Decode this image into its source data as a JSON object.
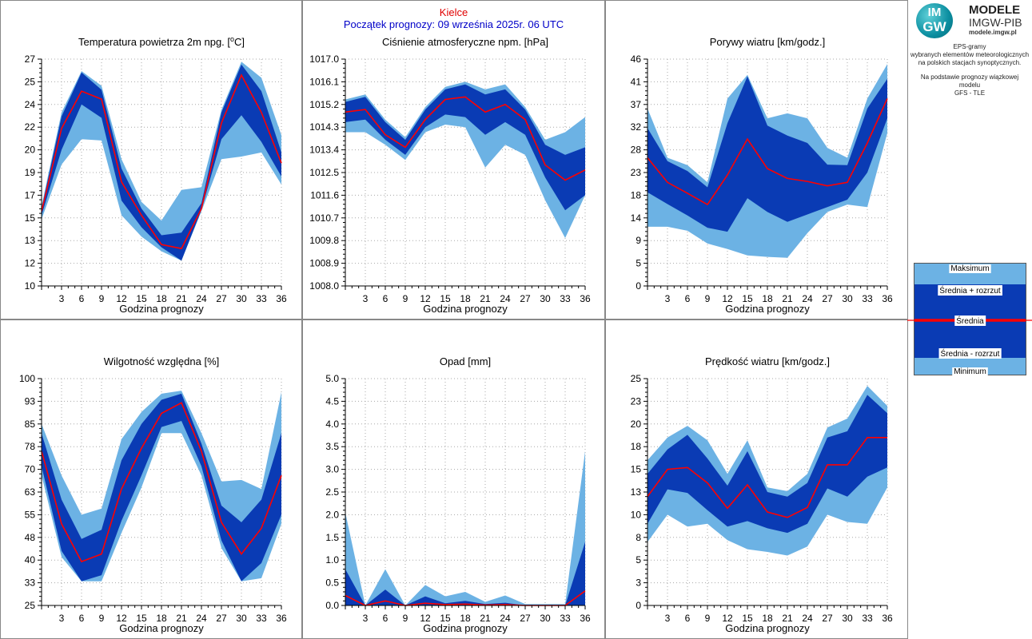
{
  "header": {
    "station": "Kielce",
    "forecast_start": "Początek prognozy: 09 września 2025r. 06 UTC"
  },
  "logo": {
    "badge_top": "IM",
    "badge_bottom": "GW",
    "line1": "MODELE",
    "line2": "IMGW-PIB",
    "line3": "modele.imgw.pl"
  },
  "description": {
    "line1": "EPS-gramy",
    "line2": "wybranych elementów meteorologicznych",
    "line3": "na polskich stacjach  synoptycznych.",
    "line4": "Na podstawie prognozy wiązkowej modelu",
    "line5": "GFS - TLE"
  },
  "legend": {
    "items": [
      "Maksimum",
      "Średnia + rozrzut",
      "Średnia",
      "Średnia - rozrzut",
      "Minimum"
    ]
  },
  "colors": {
    "outer_band": "#6cb2e4",
    "inner_band": "#0a3bb4",
    "mean_line": "#ff0000",
    "grid": "#a8a8a8",
    "frame": "#888888"
  },
  "chart_data": [
    {
      "type": "area",
      "title": "Temperatura powietrza 2m npg. [",
      "title_sup": "o",
      "title_suffix": "C]",
      "xlabel": "Godzina prognozy",
      "x": [
        0,
        3,
        6,
        9,
        12,
        15,
        18,
        21,
        24,
        27,
        30,
        33,
        36
      ],
      "x_ticks": [
        3,
        6,
        9,
        12,
        15,
        18,
        21,
        24,
        27,
        30,
        33,
        36
      ],
      "ylim": [
        10,
        27
      ],
      "y_ticks": [
        "10",
        "12",
        "13",
        "15",
        "17",
        "19",
        "20",
        "22",
        "24",
        "25",
        "27"
      ],
      "max": [
        16.0,
        23.0,
        26.1,
        25.0,
        19.5,
        16.3,
        14.9,
        17.2,
        17.4,
        23.2,
        26.8,
        25.6,
        21.3
      ],
      "mean_plus": [
        15.8,
        22.7,
        26.0,
        24.7,
        18.8,
        15.8,
        13.8,
        14.0,
        16.2,
        23.0,
        26.6,
        24.6,
        20.0
      ],
      "mean": [
        15.6,
        21.8,
        24.6,
        24.0,
        17.8,
        15.3,
        13.1,
        12.8,
        15.8,
        22.2,
        25.8,
        23.0,
        19.2
      ],
      "mean_minus": [
        15.3,
        20.2,
        23.6,
        22.6,
        16.4,
        14.4,
        12.9,
        11.9,
        15.7,
        21.0,
        22.8,
        20.8,
        18.2
      ],
      "min": [
        15.0,
        19.1,
        21.0,
        20.9,
        15.3,
        13.7,
        12.6,
        11.9,
        15.6,
        19.5,
        19.7,
        20.0,
        17.6
      ]
    },
    {
      "type": "area",
      "title": "Ciśnienie atmosferyczne npm. [hPa]",
      "xlabel": "Godzina prognozy",
      "x": [
        0,
        3,
        6,
        9,
        12,
        15,
        18,
        21,
        24,
        27,
        30,
        33,
        36
      ],
      "x_ticks": [
        3,
        6,
        9,
        12,
        15,
        18,
        21,
        24,
        27,
        30,
        33,
        36
      ],
      "ylim": [
        1008.0,
        1017.0
      ],
      "y_ticks": [
        "1008.0",
        "1008.9",
        "1009.8",
        "1010.7",
        "1011.6",
        "1012.5",
        "1013.4",
        "1014.3",
        "1015.2",
        "1016.1",
        "1017.0"
      ],
      "max": [
        1015.4,
        1015.6,
        1014.6,
        1013.9,
        1015.1,
        1015.9,
        1016.1,
        1015.8,
        1016.0,
        1015.1,
        1013.8,
        1014.1,
        1014.7
      ],
      "mean_plus": [
        1015.3,
        1015.5,
        1014.5,
        1013.8,
        1015.0,
        1015.8,
        1016.0,
        1015.6,
        1015.8,
        1015.0,
        1013.6,
        1013.2,
        1013.5
      ],
      "mean": [
        1014.9,
        1015.0,
        1014.0,
        1013.5,
        1014.6,
        1015.4,
        1015.5,
        1014.9,
        1015.2,
        1014.6,
        1012.8,
        1012.2,
        1012.6
      ],
      "mean_minus": [
        1014.5,
        1014.6,
        1013.8,
        1013.2,
        1014.3,
        1014.8,
        1014.7,
        1014.0,
        1014.5,
        1014.0,
        1012.3,
        1011.0,
        1011.6
      ],
      "min": [
        1014.1,
        1014.1,
        1013.6,
        1013.0,
        1014.1,
        1014.4,
        1014.3,
        1012.7,
        1013.6,
        1013.2,
        1011.4,
        1009.9,
        1011.6
      ]
    },
    {
      "type": "area",
      "title": "Porywy wiatru [km/godz.]",
      "xlabel": "Godzina prognozy",
      "x": [
        0,
        3,
        6,
        9,
        12,
        15,
        18,
        21,
        24,
        27,
        30,
        33,
        36
      ],
      "x_ticks": [
        3,
        6,
        9,
        12,
        15,
        18,
        21,
        24,
        27,
        30,
        33,
        36
      ],
      "ylim": [
        0,
        46
      ],
      "y_ticks": [
        "0",
        "5",
        "9",
        "14",
        "18",
        "23",
        "28",
        "32",
        "37",
        "41",
        "46"
      ],
      "max": [
        36.0,
        26.0,
        24.5,
        21.0,
        38.0,
        42.8,
        34.0,
        35.0,
        34.0,
        28.0,
        26.0,
        38.0,
        45.0
      ],
      "mean_plus": [
        32.0,
        25.3,
        23.3,
        20.0,
        33.0,
        42.5,
        32.5,
        30.5,
        29.0,
        24.6,
        24.5,
        36.0,
        42.0
      ],
      "mean": [
        26.0,
        21.0,
        18.8,
        16.5,
        22.5,
        29.8,
        23.8,
        21.8,
        21.2,
        20.3,
        21.0,
        29.0,
        38.0
      ],
      "mean_minus": [
        19.0,
        16.6,
        14.3,
        11.8,
        11.0,
        17.8,
        15.0,
        13.0,
        14.5,
        16.0,
        17.5,
        23.0,
        34.0
      ],
      "min": [
        12.0,
        12.0,
        11.2,
        8.6,
        7.5,
        6.2,
        5.9,
        5.7,
        10.7,
        15.0,
        16.5,
        16.0,
        31.0
      ]
    },
    {
      "type": "area",
      "title": "Wilgotność względna [%]",
      "xlabel": "Godzina prognozy",
      "x": [
        0,
        3,
        6,
        9,
        12,
        15,
        18,
        21,
        24,
        27,
        30,
        33,
        36
      ],
      "x_ticks": [
        3,
        6,
        9,
        12,
        15,
        18,
        21,
        24,
        27,
        30,
        33,
        36
      ],
      "ylim": [
        25,
        100
      ],
      "y_ticks": [
        "25",
        "33",
        "40",
        "48",
        "55",
        "63",
        "70",
        "78",
        "85",
        "93",
        "100"
      ],
      "max": [
        85.0,
        68.0,
        55.0,
        57.0,
        80.0,
        89.0,
        95.0,
        96.0,
        82.0,
        66.0,
        66.5,
        63.5,
        95.5
      ],
      "mean_plus": [
        82.0,
        60.0,
        47.0,
        50.0,
        73.0,
        85.0,
        93.0,
        95.0,
        78.5,
        58.0,
        52.5,
        60.0,
        82.0
      ],
      "mean": [
        76.0,
        52.0,
        39.5,
        42.0,
        63.5,
        77.0,
        88.5,
        92.0,
        76.0,
        52.5,
        42.0,
        50.5,
        68.0
      ],
      "mean_minus": [
        71.0,
        43.0,
        33.0,
        35.0,
        53.0,
        68.0,
        84.0,
        86.0,
        71.0,
        46.5,
        33.0,
        39.0,
        55.0
      ],
      "min": [
        68.0,
        41.0,
        33.0,
        33.0,
        49.0,
        64.0,
        82.0,
        82.0,
        68.0,
        44.0,
        33.0,
        34.0,
        52.0
      ]
    },
    {
      "type": "area",
      "title": "Opad [mm]",
      "xlabel": "Godzina prognozy",
      "x": [
        0,
        3,
        6,
        9,
        12,
        15,
        18,
        21,
        24,
        27,
        30,
        33,
        36
      ],
      "x_ticks": [
        3,
        6,
        9,
        12,
        15,
        18,
        21,
        24,
        27,
        30,
        33,
        36
      ],
      "ylim": [
        0,
        5
      ],
      "y_ticks": [
        "0.0",
        "0.5",
        "1.0",
        "1.5",
        "2.0",
        "2.5",
        "3.0",
        "3.5",
        "4.0",
        "4.5",
        "5.0"
      ],
      "max": [
        2.05,
        0.0,
        0.8,
        0.0,
        0.45,
        0.2,
        0.3,
        0.08,
        0.22,
        0.03,
        0.03,
        0.03,
        3.4
      ],
      "mean_plus": [
        0.8,
        0.0,
        0.35,
        0.0,
        0.2,
        0.05,
        0.1,
        0.03,
        0.06,
        0.0,
        0.0,
        0.0,
        1.4
      ],
      "mean": [
        0.22,
        0.0,
        0.1,
        0.0,
        0.05,
        0.02,
        0.03,
        0.01,
        0.02,
        0.0,
        0.0,
        0.0,
        0.32
      ],
      "mean_minus": [
        0.0,
        0.0,
        0.0,
        0.0,
        0.0,
        0.0,
        0.0,
        0.0,
        0.0,
        0.0,
        0.0,
        0.0,
        0.0
      ],
      "min": [
        0.0,
        0.0,
        0.0,
        0.0,
        0.0,
        0.0,
        0.0,
        0.0,
        0.0,
        0.0,
        0.0,
        0.0,
        0.0
      ]
    },
    {
      "type": "area",
      "title": "Prędkość wiatru [km/godz.]",
      "xlabel": "Godzina prognozy",
      "x": [
        0,
        3,
        6,
        9,
        12,
        15,
        18,
        21,
        24,
        27,
        30,
        33,
        36
      ],
      "x_ticks": [
        3,
        6,
        9,
        12,
        15,
        18,
        21,
        24,
        27,
        30,
        33,
        36
      ],
      "ylim": [
        0,
        25
      ],
      "y_ticks": [
        "0",
        "3",
        "5",
        "8",
        "10",
        "13",
        "15",
        "18",
        "20",
        "23",
        "25"
      ],
      "max": [
        16.0,
        18.5,
        19.8,
        18.2,
        14.5,
        18.2,
        13.0,
        12.6,
        14.5,
        19.6,
        20.6,
        24.2,
        22.0
      ],
      "mean_plus": [
        14.5,
        17.2,
        18.8,
        16.2,
        13.2,
        17.0,
        12.5,
        12.0,
        13.5,
        18.5,
        19.2,
        23.2,
        21.2
      ],
      "mean": [
        12.0,
        15.0,
        15.2,
        13.5,
        10.7,
        13.3,
        10.3,
        9.7,
        10.8,
        15.5,
        15.5,
        18.5,
        18.5
      ],
      "mean_minus": [
        9.0,
        12.8,
        12.4,
        10.5,
        8.7,
        9.3,
        8.5,
        8.0,
        9.0,
        12.9,
        12.0,
        14.2,
        15.2
      ],
      "min": [
        7.0,
        10.0,
        8.7,
        9.0,
        7.2,
        6.2,
        5.9,
        5.5,
        6.5,
        10.0,
        9.2,
        9.0,
        13.0
      ]
    }
  ]
}
